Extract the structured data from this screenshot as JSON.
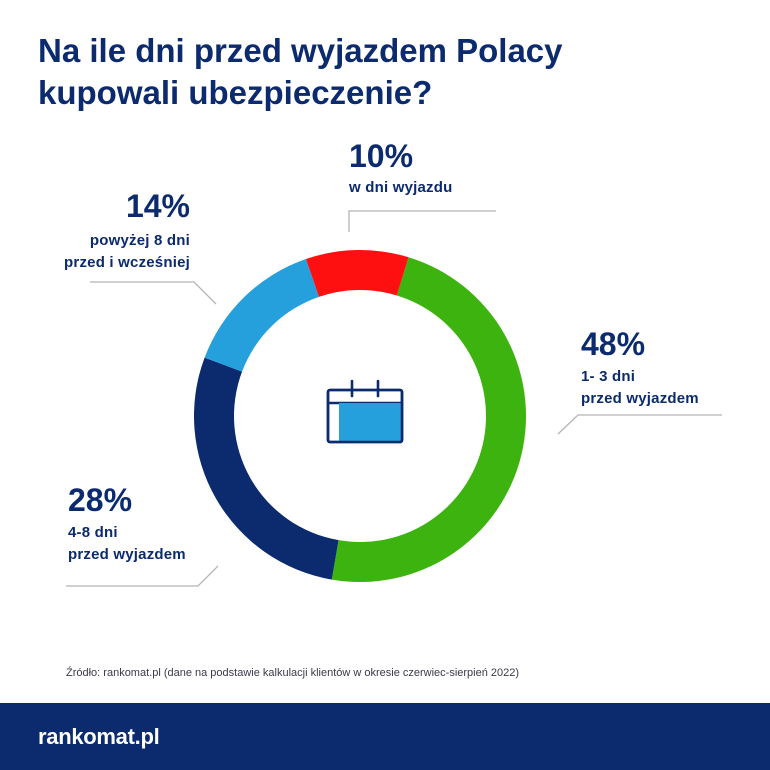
{
  "title_lines": [
    "Na ile dni przed wyjazdem Polacy",
    "kupowali ubezpieczenie?"
  ],
  "chart_data": {
    "type": "pie",
    "variant": "donut",
    "title": "Na ile dni przed wyjazdem Polacy kupowali ubezpieczenie?",
    "slices": [
      {
        "label": "1- 3 dni przed wyjazdem",
        "value": 48,
        "display": "48%",
        "desc": [
          "1- 3 dni",
          "przed wyjazdem"
        ],
        "color": "#3cb30f"
      },
      {
        "label": "4-8 dni przed wyjazdem",
        "value": 28,
        "display": "28%",
        "desc": [
          "4-8 dni",
          "przed wyjazdem"
        ],
        "color": "#0c2a6e"
      },
      {
        "label": "powyżej 8 dni przed i wcześniej",
        "value": 14,
        "display": "14%",
        "desc": [
          "powyżej 8 dni",
          "przed i wcześniej"
        ],
        "color": "#26a0dc"
      },
      {
        "label": "w dni wyjazdu",
        "value": 10,
        "display": "10%",
        "desc": [
          "w dni wyjazdu"
        ],
        "color": "#ff1010"
      }
    ]
  },
  "center_icon": "calendar-icon",
  "source": "Źródło: rankomat.pl (dane na podstawie kalkulacji klientów w okresie czerwiec-sierpień 2022)",
  "logo": "rankomat.pl"
}
